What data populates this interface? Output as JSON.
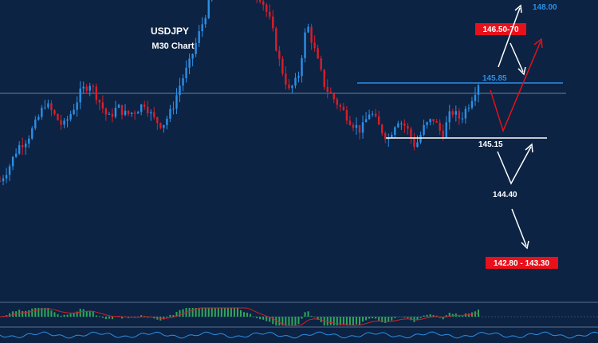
{
  "chart_data": {
    "type": "candlestick",
    "title": "USDJPY",
    "subtitle": "M30 Chart",
    "colors": {
      "background": "#0c2343",
      "bull": "#2b8fe6",
      "bear": "#d81e2a",
      "level_line": "#2b8fe6",
      "support_line": "#ffffff",
      "target_box": "#e8101a",
      "macd_pos": "#2fa85a",
      "macd_signal": "#d81e2a"
    },
    "levels": {
      "top": "148.00",
      "upper_target": "146.50-70",
      "resistance": "145.85",
      "support": "145.15",
      "lower_mid": "144.40",
      "lower_target": "142.80 - 143.30"
    },
    "price_axis": {
      "min": 142.5,
      "max": 148.3
    },
    "price_path": [
      144.62,
      144.8,
      145.05,
      145.15,
      145.35,
      145.6,
      145.45,
      145.3,
      145.5,
      145.75,
      145.85,
      145.62,
      145.4,
      145.55,
      145.45,
      145.5,
      145.6,
      145.4,
      145.32,
      145.5,
      145.85,
      146.1,
      146.45,
      146.8,
      147.05,
      147.25,
      147.4,
      147.2,
      147.05,
      146.9,
      146.6,
      146.1,
      145.75,
      145.9,
      146.6,
      146.2,
      145.8,
      145.65,
      145.5,
      145.35,
      145.25,
      145.5,
      145.3,
      145.15,
      145.4,
      145.3,
      145.05,
      145.3,
      145.4,
      145.2,
      145.5,
      145.4,
      145.6,
      145.85
    ],
    "forecast": {
      "up_scenario": [
        145.8,
        145.12,
        146.0,
        146.85
      ],
      "down_scenario": [
        145.15,
        144.42,
        144.95
      ]
    }
  }
}
